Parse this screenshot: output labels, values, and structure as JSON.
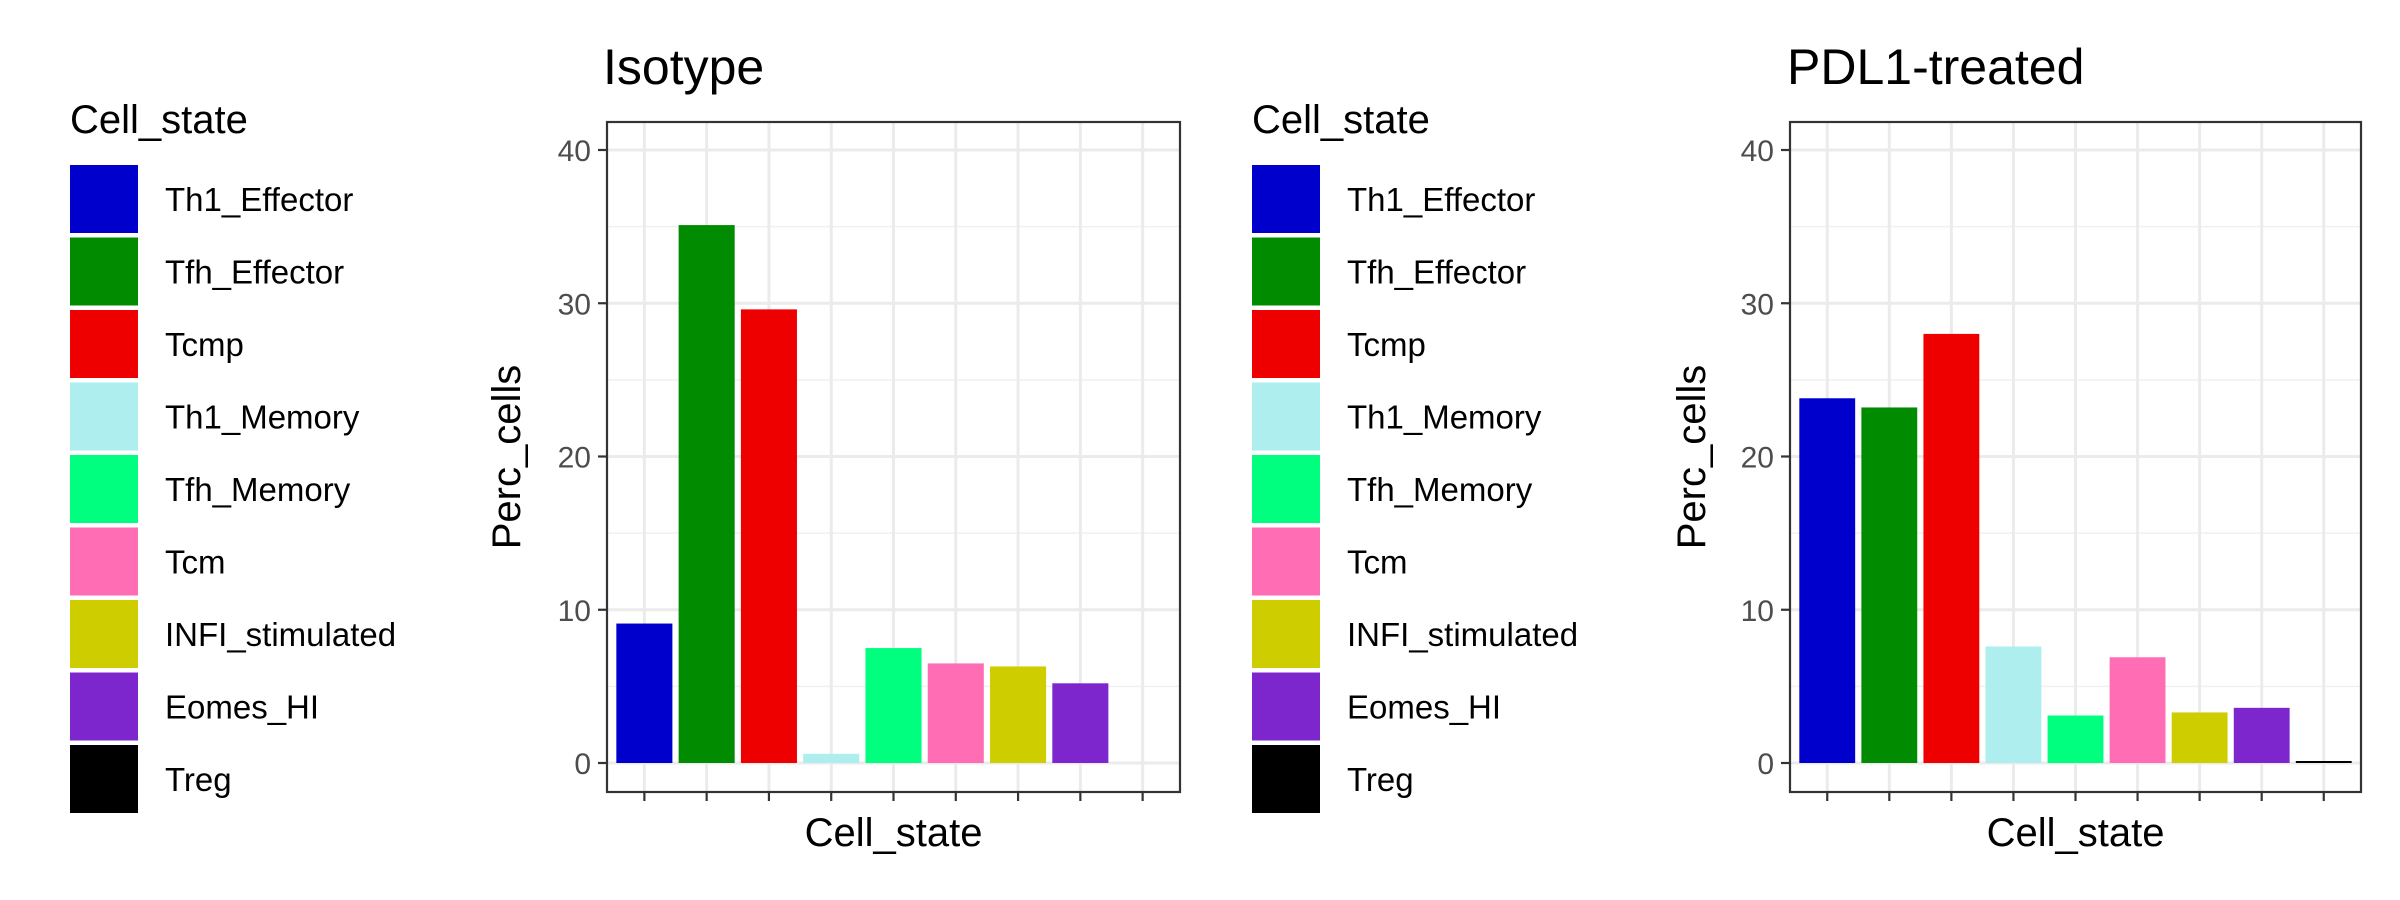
{
  "chart_data": [
    {
      "type": "bar",
      "title": "Isotype",
      "xlabel": "Cell_state",
      "ylabel": "Perc_cells",
      "ylim": [
        0,
        40
      ],
      "yticks": [
        0,
        10,
        20,
        30,
        40
      ],
      "grid": true,
      "legend": {
        "title": "Cell_state",
        "placement": "left",
        "entries": [
          "Th1_Effector",
          "Tfh_Effector",
          "Tcmp",
          "Th1_Memory",
          "Tfh_Memory",
          "Tcm",
          "INFI_stimulated",
          "Eomes_HI",
          "Treg"
        ]
      },
      "categories": [
        "Th1_Effector",
        "Tfh_Effector",
        "Tcmp",
        "Th1_Memory",
        "Tfh_Memory",
        "Tcm",
        "INFI_stimulated",
        "Eomes_HI",
        "Treg"
      ],
      "values": [
        9.1,
        35.1,
        29.6,
        0.6,
        7.5,
        6.5,
        6.3,
        5.2,
        0
      ]
    },
    {
      "type": "bar",
      "title": "PDL1-treated",
      "xlabel": "Cell_state",
      "ylabel": "Perc_cells",
      "ylim": [
        0,
        40
      ],
      "yticks": [
        0,
        10,
        20,
        30,
        40
      ],
      "grid": true,
      "legend": {
        "title": "Cell_state",
        "placement": "left",
        "entries": [
          "Th1_Effector",
          "Tfh_Effector",
          "Tcmp",
          "Th1_Memory",
          "Tfh_Memory",
          "Tcm",
          "INFI_stimulated",
          "Eomes_HI",
          "Treg"
        ]
      },
      "categories": [
        "Th1_Effector",
        "Tfh_Effector",
        "Tcmp",
        "Th1_Memory",
        "Tfh_Memory",
        "Tcm",
        "INFI_stimulated",
        "Eomes_HI",
        "Treg"
      ],
      "values": [
        23.8,
        23.2,
        28.0,
        7.6,
        3.1,
        6.9,
        3.3,
        3.6,
        0.1
      ]
    }
  ],
  "colors": {
    "Th1_Effector": "#0000CD",
    "Tfh_Effector": "#008B00",
    "Tcmp": "#EE0000",
    "Th1_Memory": "#AEEEEE",
    "Tfh_Memory": "#00FF7F",
    "Tcm": "#FF6EB4",
    "INFI_stimulated": "#CDCD00",
    "Eomes_HI": "#7D26CD",
    "Treg": "#000000"
  }
}
